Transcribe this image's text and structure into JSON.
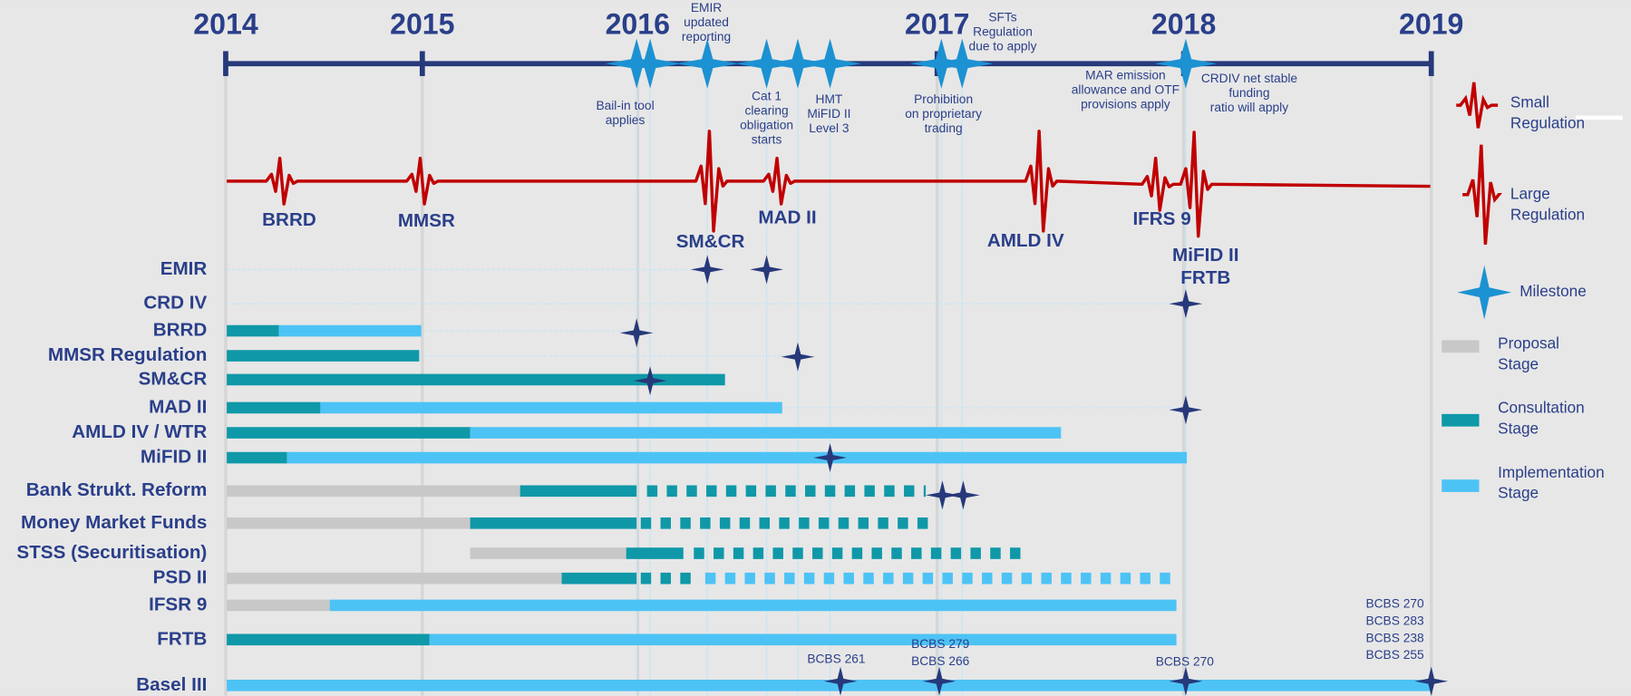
{
  "years": [
    "2014",
    "2015",
    "2016",
    "2017",
    "2018",
    "2019"
  ],
  "top_milestones": [
    [
      "EMIR",
      "updated",
      "reporting"
    ],
    [
      "Bail-in tool",
      "applies"
    ],
    [
      "Cat 1",
      "clearing",
      "obligation",
      "starts"
    ],
    [
      "HMT",
      "MiFID II",
      "Level 3"
    ],
    [
      "SFTs",
      "Regulation",
      "due to apply"
    ],
    [
      "Prohibition",
      "on proprietary",
      "trading"
    ],
    [
      "MAR emission",
      "allowance and OTF",
      "provisions apply"
    ],
    [
      "CRDIV net stable",
      "funding",
      "ratio will apply"
    ]
  ],
  "regulations": [
    [
      "BRRD"
    ],
    [
      "MMSR"
    ],
    [
      "SM&CR"
    ],
    [
      "MAD II"
    ],
    [
      "AMLD IV"
    ],
    [
      "IFRS 9"
    ],
    [
      "MiFID II",
      "FRTB"
    ]
  ],
  "rows": [
    "EMIR",
    "CRD IV",
    "BRRD",
    "MMSR Regulation",
    "SM&CR",
    "MAD II",
    "AMLD IV / WTR",
    "MiFID II",
    "Bank Strukt. Reform",
    "Money Market Funds",
    "STSS (Securitisation)",
    "PSD II",
    "IFSR 9",
    "FRTB",
    "Basel III"
  ],
  "basel_labels": [
    [
      "BCBS 261"
    ],
    [
      "BCBS 279",
      "BCBS 266"
    ],
    [
      "BCBS 270"
    ],
    [
      "BCBS 270",
      "BCBS 283",
      "BCBS 238",
      "BCBS 255"
    ]
  ],
  "legend": [
    [
      "Small",
      "Regulation"
    ],
    [
      "Large",
      "Regulation"
    ],
    [
      "Milestone"
    ],
    [
      "Proposal",
      "Stage"
    ],
    [
      "Consultation",
      "Stage"
    ],
    [
      "Implementation",
      "Stage"
    ]
  ]
}
